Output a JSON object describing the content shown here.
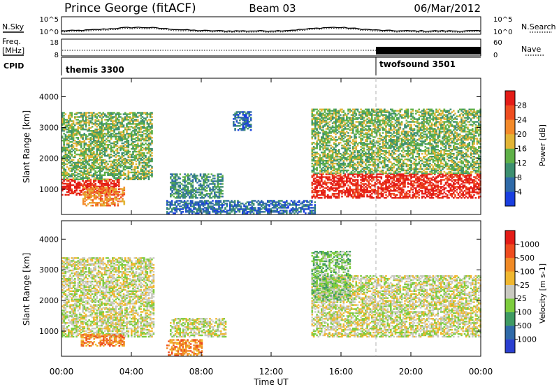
{
  "header": {
    "station": "Prince George (fitACF)",
    "beam": "Beam 03",
    "date": "06/Mar/2012"
  },
  "sky_panel": {
    "left_label": "N.Sky",
    "right_label": "N.Search",
    "left_ticks": [
      "10^5",
      "10^0"
    ],
    "right_ticks": [
      "10^5",
      "10^0"
    ],
    "legend_line_style": "dotted"
  },
  "freq_panel": {
    "left_label_line1": "Freq.",
    "left_label_line2": "[MHz]",
    "right_label": "Nave",
    "left_ticks": [
      "18",
      "8"
    ],
    "right_ticks": [
      "60",
      "0"
    ],
    "legend_line_style": "dotted"
  },
  "cpid_panel": {
    "label": "CPID",
    "segments": [
      {
        "name": "themis 3300",
        "start_hour": 0.0
      },
      {
        "name": "twofsound 3501",
        "start_hour": 18.0
      }
    ]
  },
  "time_axis": {
    "title": "Time UT",
    "tick_labels": [
      "00:00",
      "04:00",
      "08:00",
      "12:00",
      "16:00",
      "20:00",
      "00:00"
    ],
    "range_hours": [
      0,
      24
    ],
    "mode_change_hour": 18.0
  },
  "chart_data": [
    {
      "type": "heatmap",
      "name": "power",
      "ylabel": "Slant Range [km]",
      "yticks": [
        "1000",
        "2000",
        "3000",
        "4000"
      ],
      "ylim": [
        180,
        4600
      ],
      "colorbar": {
        "label": "Power [dB]",
        "ticks": [
          "4",
          "8",
          "12",
          "16",
          "20",
          "24",
          "28"
        ],
        "colors": [
          "#1a3fe0",
          "#2f6aa8",
          "#3d8f70",
          "#5fb048",
          "#e2b436",
          "#f38a2a",
          "#ee4d20",
          "#e41c17"
        ]
      },
      "echo_regions": [
        {
          "t0": 0.0,
          "t1": 3.3,
          "r0": 800,
          "r1": 1300,
          "level": 7
        },
        {
          "t0": 0.0,
          "t1": 5.2,
          "r0": 1300,
          "r1": 3500,
          "level": 3
        },
        {
          "t0": 1.2,
          "t1": 3.6,
          "r0": 450,
          "r1": 1050,
          "level": 5
        },
        {
          "t0": 6.2,
          "t1": 9.2,
          "r0": 700,
          "r1": 1500,
          "level": 2
        },
        {
          "t0": 6.0,
          "t1": 14.5,
          "r0": 200,
          "r1": 650,
          "level": 1
        },
        {
          "t0": 9.8,
          "t1": 10.8,
          "r0": 2900,
          "r1": 3500,
          "level": 1
        },
        {
          "t0": 14.3,
          "t1": 24.0,
          "r0": 700,
          "r1": 1500,
          "level": 7
        },
        {
          "t0": 14.3,
          "t1": 24.0,
          "r0": 1500,
          "r1": 3600,
          "level": 3
        }
      ]
    },
    {
      "type": "heatmap",
      "name": "velocity",
      "ylabel": "Slant Range [km]",
      "yticks": [
        "1000",
        "2000",
        "3000",
        "4000"
      ],
      "ylim": [
        180,
        4600
      ],
      "colorbar": {
        "label": "Velocity [m s-1]",
        "ticks": [
          "1000",
          "500",
          "100",
          "25",
          "-25",
          "-100",
          "-500",
          "-1000"
        ],
        "colors": [
          "#2a3fd0",
          "#2f6aa8",
          "#3f9a63",
          "#7dcc3e",
          "#c9c9c0",
          "#f0b730",
          "#f08a26",
          "#ee4c1f",
          "#e41c17"
        ]
      },
      "echo_regions": [
        {
          "t0": 0.0,
          "t1": 5.3,
          "r0": 800,
          "r1": 3400,
          "level": 4
        },
        {
          "t0": 1.1,
          "t1": 3.6,
          "r0": 500,
          "r1": 900,
          "level": 6
        },
        {
          "t0": 6.2,
          "t1": 9.4,
          "r0": 800,
          "r1": 1400,
          "level": 4
        },
        {
          "t0": 6.0,
          "t1": 8.0,
          "r0": 200,
          "r1": 700,
          "level": 6
        },
        {
          "t0": 14.3,
          "t1": 24.0,
          "r0": 800,
          "r1": 2800,
          "level": 4
        },
        {
          "t0": 14.3,
          "t1": 16.5,
          "r0": 2000,
          "r1": 3600,
          "level": 3
        }
      ]
    }
  ]
}
